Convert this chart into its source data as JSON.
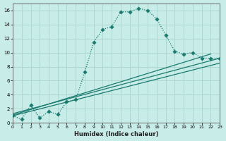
{
  "xlabel": "Humidex (Indice chaleur)",
  "background_color": "#c8ece8",
  "grid_color": "#a8d4ce",
  "line_color": "#1a7a6e",
  "xlim": [
    0,
    23
  ],
  "ylim": [
    0,
    17
  ],
  "xticks": [
    0,
    1,
    2,
    3,
    4,
    5,
    6,
    7,
    8,
    9,
    10,
    11,
    12,
    13,
    14,
    15,
    16,
    17,
    18,
    19,
    20,
    21,
    22,
    23
  ],
  "yticks": [
    0,
    2,
    4,
    6,
    8,
    10,
    12,
    14,
    16
  ],
  "curve_main_x": [
    0,
    1,
    2,
    3,
    4,
    5,
    6,
    7,
    8,
    9,
    10,
    11,
    12,
    13,
    14,
    15,
    16,
    17,
    18,
    19,
    20,
    21,
    22,
    23
  ],
  "curve_main_y": [
    1.0,
    0.5,
    2.5,
    0.7,
    1.6,
    1.2,
    3.0,
    3.3,
    7.2,
    11.5,
    13.3,
    13.7,
    15.8,
    15.8,
    16.3,
    16.0,
    14.8,
    12.5,
    10.2,
    9.8,
    10.0,
    9.2,
    9.2,
    9.2
  ],
  "line1_x": [
    0,
    23
  ],
  "line1_y": [
    1.0,
    8.5
  ],
  "line2_x": [
    0,
    22
  ],
  "line2_y": [
    1.1,
    9.8
  ],
  "line3_x": [
    0,
    23
  ],
  "line3_y": [
    1.3,
    9.2
  ]
}
